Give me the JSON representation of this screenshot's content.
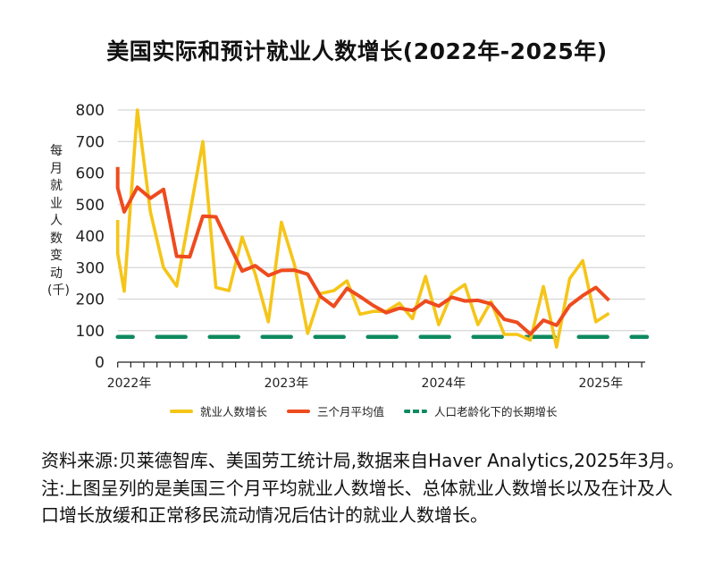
{
  "title": "美国实际和预计就业人数增长(2022年-2025年)",
  "chart_data": {
    "type": "line",
    "title": "美国实际和预计就业人数增长(2022年-2025年)",
    "ylabel": "每月就业人数变动(千)",
    "xlabel": "",
    "ylim": [
      0,
      800
    ],
    "yticks": [
      "0",
      "100",
      "200",
      "300",
      "400",
      "500",
      "600",
      "700",
      "800"
    ],
    "xlim": [
      "2022-01",
      "2025-04"
    ],
    "xtick_labels": [
      "2022年",
      "2023年",
      "2024年",
      "2025年"
    ],
    "grid": true,
    "legend_position": "bottom",
    "x": [
      "2022-01",
      "2022-02",
      "2022-03",
      "2022-04",
      "2022-05",
      "2022-06",
      "2022-07",
      "2022-08",
      "2022-09",
      "2022-10",
      "2022-11",
      "2022-12",
      "2023-01",
      "2023-02",
      "2023-03",
      "2023-04",
      "2023-05",
      "2023-06",
      "2023-07",
      "2023-08",
      "2023-09",
      "2023-10",
      "2023-11",
      "2023-12",
      "2024-01",
      "2024-02",
      "2024-03",
      "2024-04",
      "2024-05",
      "2024-06",
      "2024-07",
      "2024-08",
      "2024-09",
      "2024-10",
      "2024-11",
      "2024-12",
      "2025-01",
      "2025-02"
    ],
    "series": [
      {
        "name": "就业人数增长",
        "color": "#F5C518",
        "style": "solid",
        "start_values": [
          451,
          345
        ],
        "values": [
          225,
          800,
          477,
          300,
          241,
          470,
          700,
          237,
          227,
          397,
          280,
          128,
          444,
          308,
          91,
          218,
          227,
          258,
          152,
          161,
          161,
          187,
          138,
          272,
          119,
          218,
          246,
          119,
          192,
          88,
          88,
          70,
          240,
          48,
          265,
          322,
          128,
          155
        ]
      },
      {
        "name": "三个月平均值",
        "color": "#EE4B1F",
        "style": "solid",
        "start_values": [
          619,
          553
        ],
        "values": [
          477,
          555,
          520,
          548,
          336,
          334,
          463,
          461,
          374,
          289,
          306,
          275,
          291,
          292,
          279,
          208,
          177,
          234,
          208,
          180,
          157,
          171,
          164,
          194,
          178,
          206,
          194,
          196,
          185,
          136,
          126,
          89,
          133,
          117,
          180,
          211,
          237,
          196
        ]
      },
      {
        "name": "人口老龄化下的长期增长",
        "color": "#0E8A5F",
        "style": "dashed",
        "constant": 80
      }
    ]
  },
  "caption": "资料来源:贝莱德智库、美国劳工统计局,数据来自Haver Analytics,2025年3月。注:上图呈列的是美国三个月平均就业人数增长、总体就业人数增长以及在计及人口增长放缓和正常移民流动情况后估计的就业人数增长。"
}
